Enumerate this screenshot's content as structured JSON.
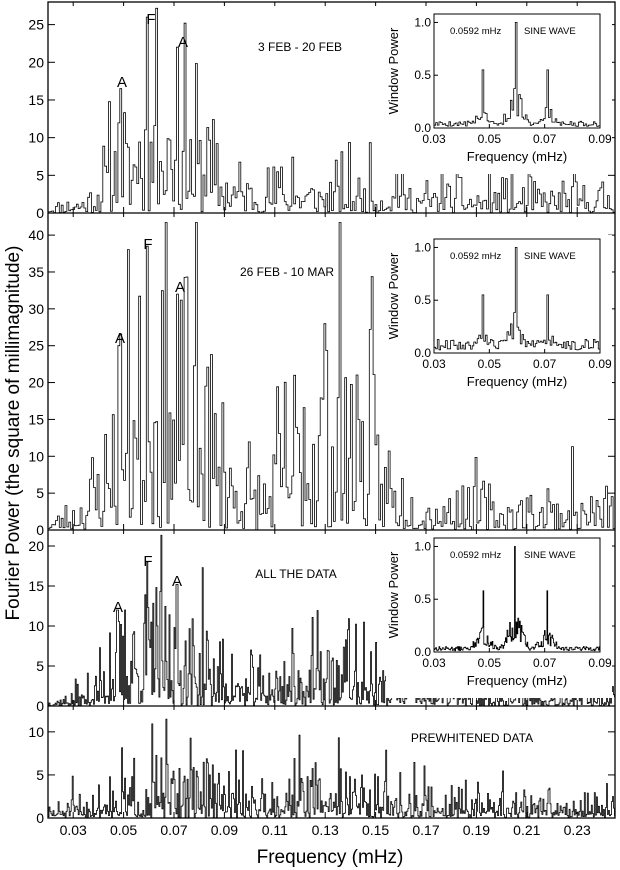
{
  "chart_data": [
    {
      "type": "line",
      "label": "3 FEB - 20 FEB",
      "ylim": [
        0,
        28
      ],
      "yticks": [
        0,
        5,
        10,
        15,
        20,
        25
      ],
      "xlim": [
        0.02,
        0.245
      ],
      "peaks": [
        {
          "x": 0.0484,
          "y": 16.5,
          "label": "A"
        },
        {
          "x": 0.0592,
          "y": 26.0,
          "label": "F"
        },
        {
          "x": 0.071,
          "y": 22.0,
          "label": "A"
        }
      ],
      "spectrum": {
        "seed": 11,
        "step": 0.00075,
        "envelope": [
          [
            0.02,
            0.6
          ],
          [
            0.035,
            1.5
          ],
          [
            0.042,
            4
          ],
          [
            0.048,
            7
          ],
          [
            0.06,
            9
          ],
          [
            0.072,
            8
          ],
          [
            0.085,
            4.5
          ],
          [
            0.1,
            2.8
          ],
          [
            0.12,
            2.5
          ],
          [
            0.14,
            2.4
          ],
          [
            0.17,
            2
          ],
          [
            0.2,
            1.8
          ],
          [
            0.245,
            1.8
          ]
        ],
        "extra": [
          [
            0.0462,
            9
          ],
          [
            0.0505,
            7
          ],
          [
            0.0563,
            10
          ],
          [
            0.0618,
            13
          ],
          [
            0.0682,
            11
          ],
          [
            0.074,
            12.5
          ],
          [
            0.0829,
            12.5
          ],
          [
            0.0785,
            7
          ],
          [
            0.064,
            8
          ],
          [
            0.112,
            7
          ],
          [
            0.117,
            8
          ],
          [
            0.136,
            6
          ],
          [
            0.158,
            6.5
          ],
          [
            0.176,
            7
          ],
          [
            0.204,
            6
          ],
          [
            0.24,
            4.5
          ]
        ]
      }
    },
    {
      "type": "line",
      "label": "26 FEB - 10 MAR",
      "ylim": [
        0,
        43
      ],
      "yticks": [
        0,
        5,
        10,
        15,
        20,
        25,
        30,
        35,
        40
      ],
      "xlim": [
        0.02,
        0.245
      ],
      "peaks": [
        {
          "x": 0.0475,
          "y": 25.0,
          "label": "A"
        },
        {
          "x": 0.0592,
          "y": 38.5,
          "label": "F"
        },
        {
          "x": 0.0707,
          "y": 32.0,
          "label": "A"
        }
      ],
      "spectrum": {
        "seed": 23,
        "step": 0.00075,
        "envelope": [
          [
            0.02,
            0.8
          ],
          [
            0.03,
            2
          ],
          [
            0.04,
            6
          ],
          [
            0.05,
            12
          ],
          [
            0.06,
            14
          ],
          [
            0.07,
            13
          ],
          [
            0.085,
            10
          ],
          [
            0.095,
            6
          ],
          [
            0.105,
            4
          ],
          [
            0.115,
            10
          ],
          [
            0.13,
            13
          ],
          [
            0.145,
            11
          ],
          [
            0.155,
            5
          ],
          [
            0.17,
            3
          ],
          [
            0.2,
            2.5
          ],
          [
            0.245,
            2.5
          ]
        ],
        "extra": [
          [
            0.0452,
            16
          ],
          [
            0.0535,
            17
          ],
          [
            0.062,
            17
          ],
          [
            0.0683,
            17
          ],
          [
            0.074,
            17
          ],
          [
            0.0825,
            21
          ],
          [
            0.089,
            12
          ],
          [
            0.0485,
            21
          ],
          [
            0.121,
            18
          ],
          [
            0.129,
            20
          ],
          [
            0.135,
            20
          ],
          [
            0.142,
            22
          ],
          [
            0.1378,
            17
          ],
          [
            0.155,
            12
          ],
          [
            0.184,
            6
          ],
          [
            0.218,
            6
          ]
        ]
      }
    },
    {
      "type": "line",
      "label": "ALL THE DATA",
      "ylim": [
        0,
        22
      ],
      "yticks": [
        0,
        5,
        10,
        15,
        20
      ],
      "xlim": [
        0.02,
        0.245
      ],
      "peaks": [
        {
          "x": 0.0474,
          "y": 12.0,
          "label": "A"
        },
        {
          "x": 0.0592,
          "y": 18.0,
          "label": "F"
        },
        {
          "x": 0.071,
          "y": 15.2,
          "label": "A"
        }
      ],
      "spectrum": {
        "seed": 37,
        "step": 0.0004,
        "envelope": [
          [
            0.02,
            0.4
          ],
          [
            0.035,
            1
          ],
          [
            0.043,
            3
          ],
          [
            0.05,
            5
          ],
          [
            0.06,
            6
          ],
          [
            0.072,
            5
          ],
          [
            0.085,
            3.5
          ],
          [
            0.1,
            2
          ],
          [
            0.115,
            3
          ],
          [
            0.13,
            3.5
          ],
          [
            0.15,
            2.5
          ],
          [
            0.17,
            1.5
          ],
          [
            0.2,
            1.2
          ],
          [
            0.245,
            1.2
          ]
        ],
        "extra": [
          [
            0.0445,
            10.5
          ],
          [
            0.0535,
            10
          ],
          [
            0.0617,
            15
          ],
          [
            0.068,
            12
          ],
          [
            0.0745,
            9.5
          ],
          [
            0.083,
            9.5
          ],
          [
            0.07,
            11
          ],
          [
            0.117,
            7
          ],
          [
            0.131,
            7
          ],
          [
            0.139,
            11
          ],
          [
            0.148,
            7
          ],
          [
            0.165,
            6.5
          ]
        ]
      }
    },
    {
      "type": "line",
      "label": "PREWHITENED  DATA",
      "ylim": [
        0,
        13
      ],
      "yticks": [
        0,
        5,
        10
      ],
      "xlim": [
        0.02,
        0.245
      ],
      "peaks": [],
      "spectrum": {
        "seed": 51,
        "step": 0.0004,
        "envelope": [
          [
            0.02,
            0.6
          ],
          [
            0.04,
            1.5
          ],
          [
            0.05,
            2.2
          ],
          [
            0.07,
            2.6
          ],
          [
            0.09,
            2.2
          ],
          [
            0.1,
            1.8
          ],
          [
            0.12,
            2.8
          ],
          [
            0.14,
            2.6
          ],
          [
            0.16,
            1.6
          ],
          [
            0.2,
            1.3
          ],
          [
            0.245,
            1.3
          ]
        ],
        "extra": [
          [
            0.0445,
            5.5
          ],
          [
            0.074,
            5.5
          ],
          [
            0.083,
            7
          ],
          [
            0.079,
            5.5
          ],
          [
            0.126,
            6.5
          ],
          [
            0.138,
            6
          ],
          [
            0.062,
            4.5
          ]
        ]
      }
    }
  ],
  "x_axis": {
    "title": "Frequency (mHz)",
    "ticks": [
      0.03,
      0.05,
      0.07,
      0.09,
      0.11,
      0.13,
      0.15,
      0.17,
      0.19,
      0.21,
      0.23
    ],
    "tick_labels": [
      "0.03",
      "0.05",
      "0.07",
      "0.09",
      "0.11",
      "0.13",
      "0.15",
      "0.17",
      "0.19",
      "0.21",
      "0.23"
    ]
  },
  "y_axis_title": "Fourier Power (the square of millimagnitude)",
  "insets": [
    {
      "panel": 0,
      "freq_label": "0.0592 mHz",
      "type_label": "SINE WAVE",
      "xlabel": "Frequency (mHz)",
      "ylabel": "Window Power",
      "xlim": [
        0.03,
        0.09
      ],
      "ylim": [
        0,
        1.08
      ],
      "xticks": [
        0.03,
        0.05,
        0.07,
        0.09
      ],
      "yticks": [
        0,
        0.5,
        1.0
      ],
      "ytick_labels": [
        "0.0",
        "0.5",
        "1.0"
      ],
      "peaks": [
        [
          0.0592,
          1.0
        ],
        [
          0.0476,
          0.55
        ],
        [
          0.0708,
          0.55
        ]
      ],
      "spectrum": {
        "seed": 5,
        "step": 0.0006,
        "base": 0.05
      }
    },
    {
      "panel": 1,
      "freq_label": "0.0592 mHz",
      "type_label": "SINE WAVE",
      "xlabel": "Frequency (mHz)",
      "ylabel": "Window Power",
      "xlim": [
        0.03,
        0.09
      ],
      "ylim": [
        0,
        1.08
      ],
      "xticks": [
        0.03,
        0.05,
        0.07,
        0.09
      ],
      "yticks": [
        0,
        0.5,
        1.0
      ],
      "ytick_labels": [
        "0.0",
        "0.5",
        "1.0"
      ],
      "peaks": [
        [
          0.0592,
          1.0
        ],
        [
          0.0476,
          0.55
        ],
        [
          0.0708,
          0.55
        ]
      ],
      "spectrum": {
        "seed": 9,
        "step": 0.0006,
        "base": 0.1
      }
    },
    {
      "panel": 2,
      "freq_label": "0.0592 mHz",
      "type_label": "SINE WAVE",
      "xlabel": "Frequency (mHz)",
      "ylabel": "Window Power",
      "xlim": [
        0.03,
        0.09
      ],
      "ylim": [
        0,
        1.08
      ],
      "xticks": [
        0.03,
        0.05,
        0.07,
        0.09
      ],
      "yticks": [
        0,
        0.5,
        1.0
      ],
      "ytick_labels": [
        "0.0",
        "0.5",
        "1.0"
      ],
      "peaks": [
        [
          0.0592,
          1.0
        ],
        [
          0.0476,
          0.58
        ],
        [
          0.0708,
          0.58
        ]
      ],
      "spectrum": {
        "seed": 13,
        "step": 0.0003,
        "base": 0.04
      }
    }
  ]
}
